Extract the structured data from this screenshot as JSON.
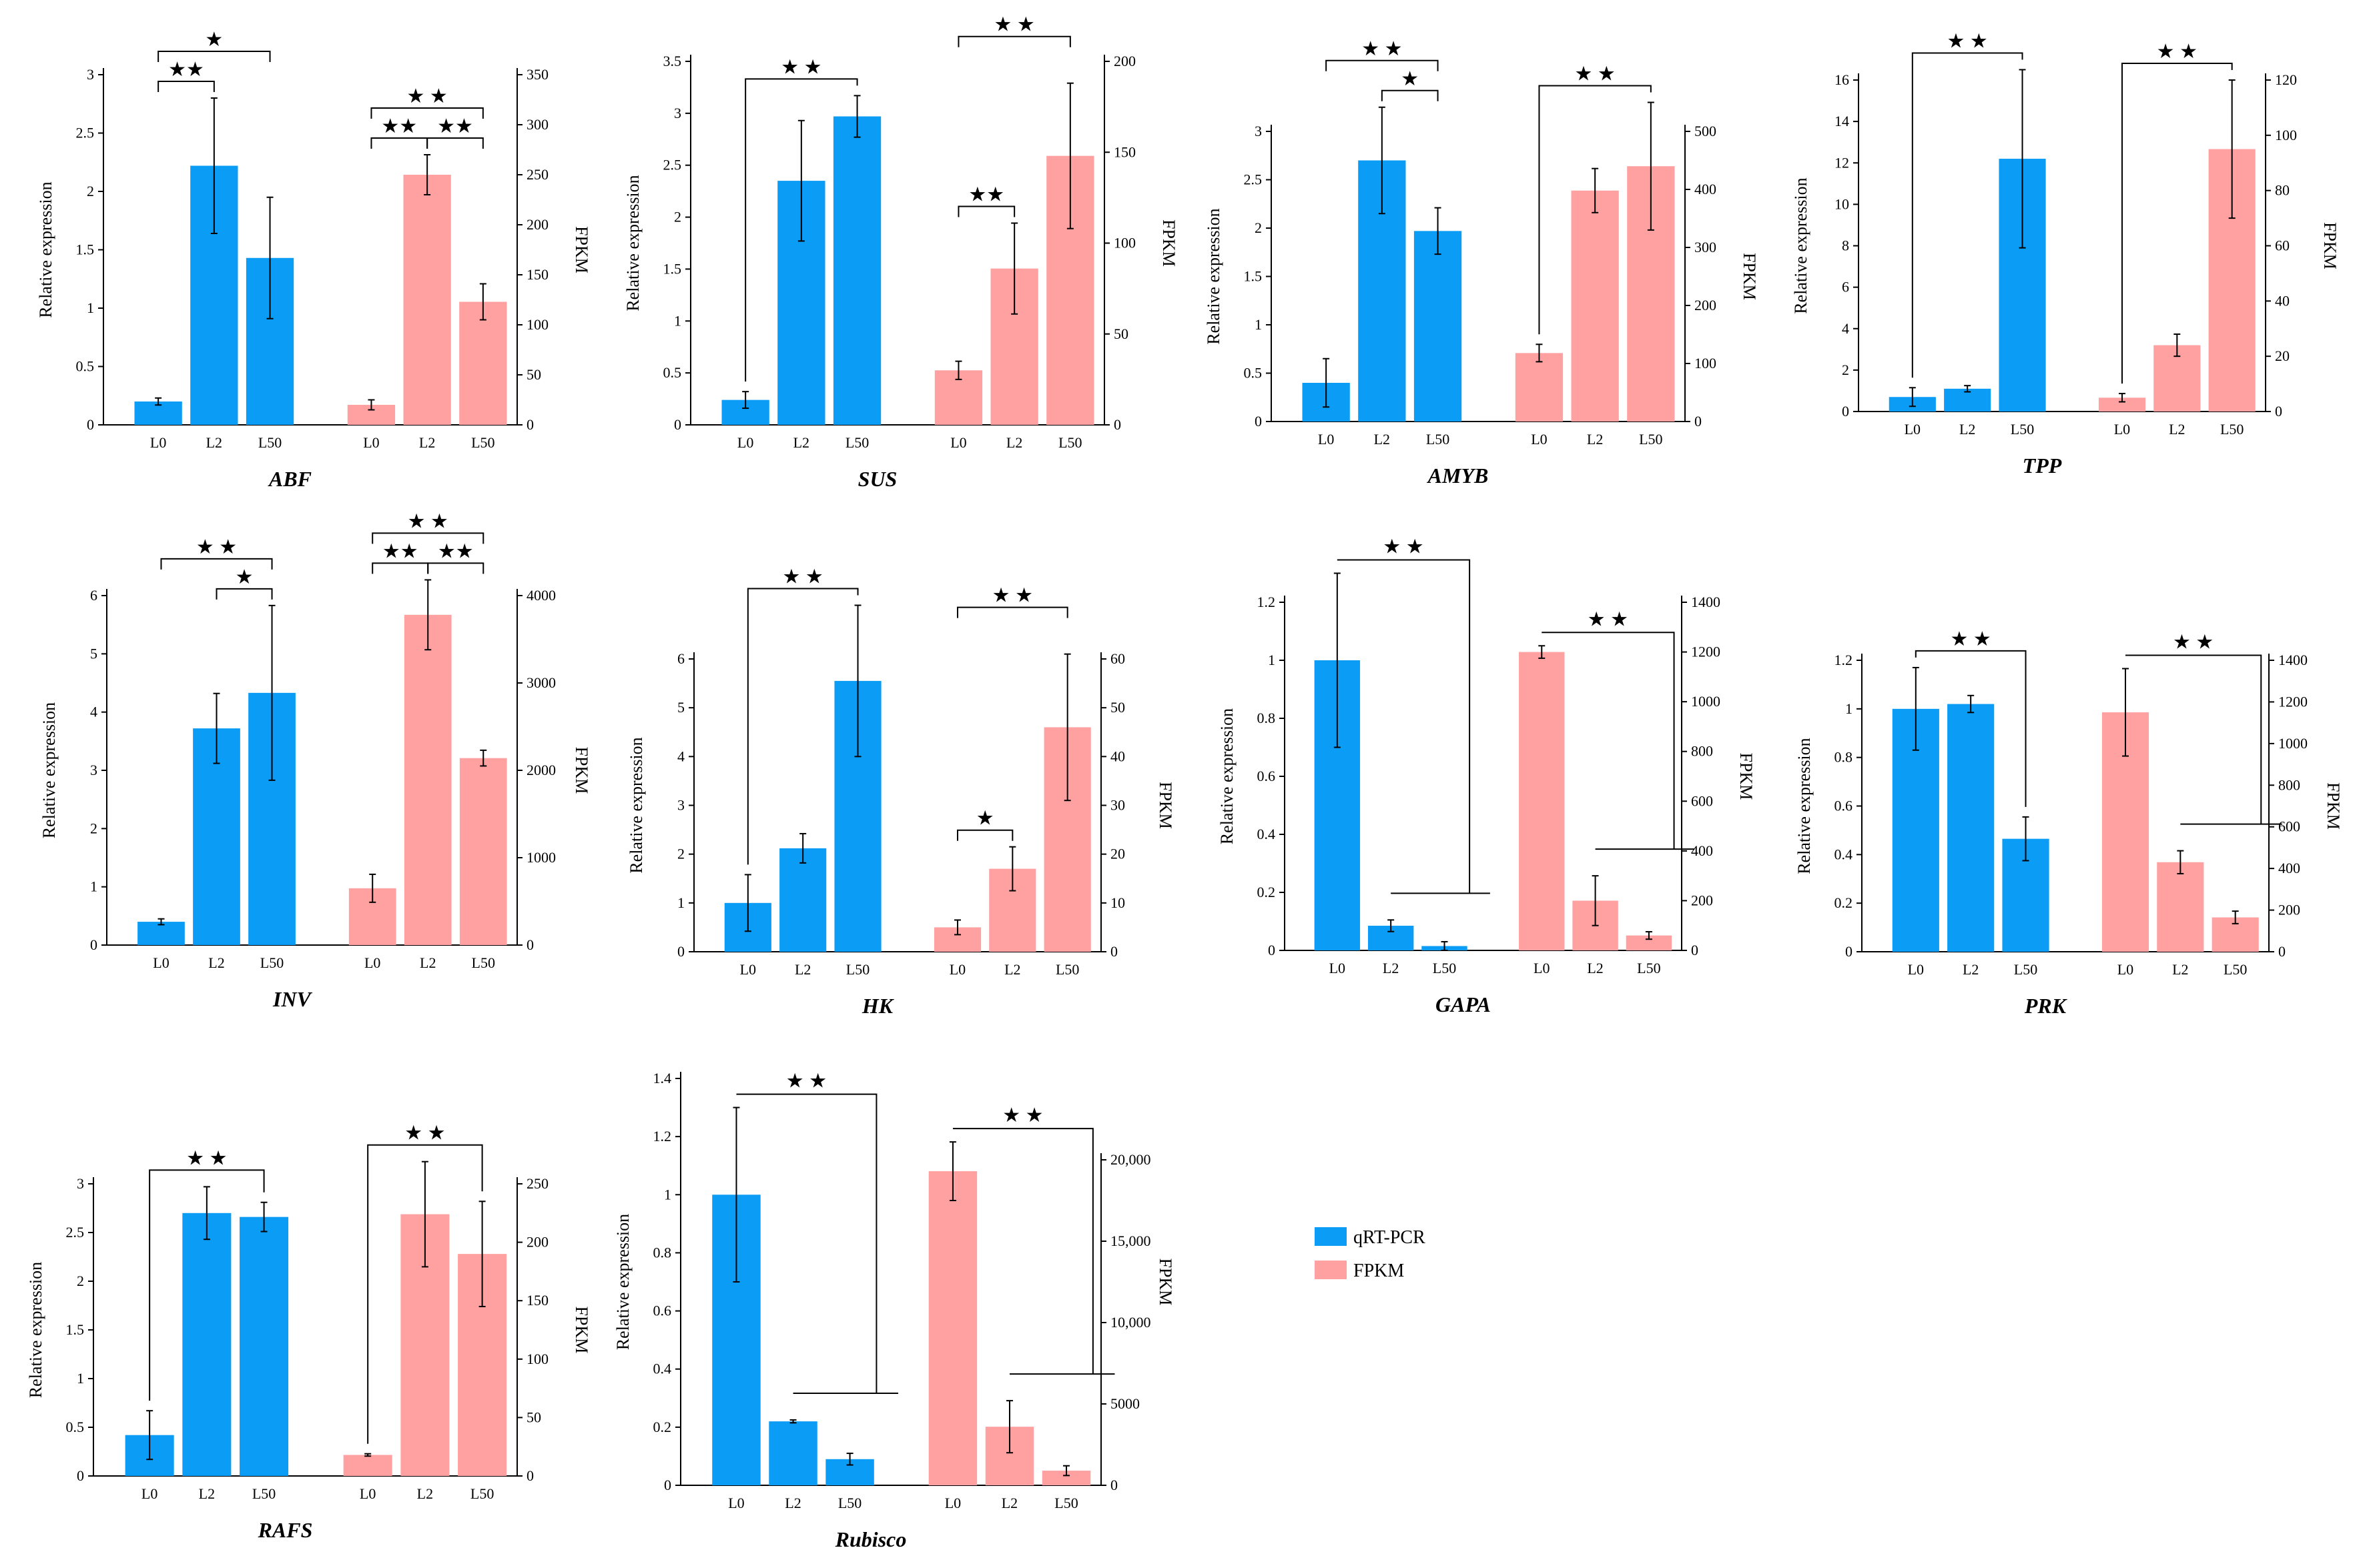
{
  "chart_data": [
    {
      "type": "bar",
      "title": "ABF",
      "categories": [
        "L0",
        "L2",
        "L50"
      ],
      "ylabel": "Relative expression",
      "y2label": "FPKM",
      "ylim": [
        0,
        3
      ],
      "yticks": [
        0,
        0.5,
        1,
        1.5,
        2,
        2.5,
        3
      ],
      "y2lim": [
        0,
        350
      ],
      "y2ticks": [
        0,
        50,
        100,
        150,
        200,
        250,
        300,
        350
      ],
      "series": [
        {
          "name": "qRT-PCR",
          "values": [
            0.2,
            2.22,
            1.43
          ],
          "errors": [
            0.03,
            0.58,
            0.52
          ]
        },
        {
          "name": "FPKM",
          "values": [
            20,
            250,
            123
          ],
          "errors": [
            5,
            20,
            18
          ]
        }
      ],
      "annotations": [
        {
          "label": "★★",
          "group": "left",
          "from": 0,
          "to": 1,
          "level": 0
        },
        {
          "label": "★",
          "group": "left",
          "from": 0,
          "to": 2,
          "level": 1
        },
        {
          "label": "★★",
          "group": "right",
          "from": 0,
          "to": 1,
          "level": 0
        },
        {
          "label": "★★",
          "group": "right",
          "from": 1,
          "to": 2,
          "level": 0
        },
        {
          "label": "★ ★",
          "group": "right",
          "from": 0,
          "to": 2,
          "level": 1
        }
      ]
    },
    {
      "type": "bar",
      "title": "SUS",
      "categories": [
        "L0",
        "L2",
        "L50"
      ],
      "ylabel": "Relative expression",
      "y2label": "FPKM",
      "ylim": [
        0,
        3.5
      ],
      "yticks": [
        0,
        0.5,
        1,
        1.5,
        2,
        2.5,
        3,
        3.5
      ],
      "y2lim": [
        0,
        200
      ],
      "y2ticks": [
        0,
        50,
        100,
        150,
        200
      ],
      "series": [
        {
          "name": "qRT-PCR",
          "values": [
            0.24,
            2.35,
            2.97
          ],
          "errors": [
            0.08,
            0.58,
            0.2
          ]
        },
        {
          "name": "FPKM",
          "values": [
            30,
            86,
            148
          ],
          "errors": [
            5,
            25,
            40
          ]
        }
      ],
      "annotations": [
        {
          "label": "★ ★",
          "group": "left",
          "from": 0,
          "to": 2,
          "level": 0,
          "type": "fork"
        },
        {
          "label": "★★",
          "group": "right",
          "from": 0,
          "to": 1,
          "level": 0
        },
        {
          "label": "★ ★",
          "group": "right",
          "from": 0,
          "to": 2,
          "level": 1
        }
      ]
    },
    {
      "type": "bar",
      "title": "AMYB",
      "categories": [
        "L0",
        "L2",
        "L50"
      ],
      "ylabel": "Relative expression",
      "y2label": "FPKM",
      "ylim": [
        0,
        3
      ],
      "yticks": [
        0,
        0.5,
        1,
        1.5,
        2,
        2.5,
        3
      ],
      "y2lim": [
        0,
        500
      ],
      "y2ticks": [
        0,
        100,
        200,
        300,
        400,
        500
      ],
      "series": [
        {
          "name": "qRT-PCR",
          "values": [
            0.4,
            2.7,
            1.97
          ],
          "errors": [
            0.25,
            0.55,
            0.24
          ]
        },
        {
          "name": "FPKM",
          "values": [
            118,
            398,
            440
          ],
          "errors": [
            15,
            38,
            110
          ]
        }
      ],
      "annotations": [
        {
          "label": "★",
          "group": "left",
          "from": 1,
          "to": 2,
          "level": 0
        },
        {
          "label": "★ ★",
          "group": "left",
          "from": 0,
          "to": 2,
          "level": 1
        },
        {
          "label": "★ ★",
          "group": "right",
          "from": 0,
          "to": 2,
          "level": 0,
          "type": "fork"
        }
      ]
    },
    {
      "type": "bar",
      "title": "TPP",
      "categories": [
        "L0",
        "L2",
        "L50"
      ],
      "ylabel": "Relative expression",
      "y2label": "FPKM",
      "ylim": [
        0,
        16
      ],
      "yticks": [
        0,
        2,
        4,
        6,
        8,
        10,
        12,
        14,
        16
      ],
      "y2lim": [
        0,
        120
      ],
      "y2ticks": [
        0,
        20,
        40,
        60,
        80,
        100,
        120
      ],
      "series": [
        {
          "name": "qRT-PCR",
          "values": [
            0.7,
            1.1,
            12.2
          ],
          "errors": [
            0.45,
            0.15,
            4.3
          ]
        },
        {
          "name": "FPKM",
          "values": [
            5,
            24,
            95
          ],
          "errors": [
            1.5,
            4,
            25
          ]
        }
      ],
      "annotations": [
        {
          "label": "★ ★",
          "group": "left",
          "from": 0,
          "to": 2,
          "level": 0,
          "type": "fork"
        },
        {
          "label": "★ ★",
          "group": "right",
          "from": 0,
          "to": 2,
          "level": 0,
          "type": "fork"
        }
      ]
    },
    {
      "type": "bar",
      "title": "INV",
      "categories": [
        "L0",
        "L2",
        "L50"
      ],
      "ylabel": "Relative expression",
      "y2label": "FPKM",
      "ylim": [
        0,
        6
      ],
      "yticks": [
        0,
        1,
        2,
        3,
        4,
        5,
        6
      ],
      "y2lim": [
        0,
        4000
      ],
      "y2ticks": [
        0,
        1000,
        2000,
        3000,
        4000
      ],
      "series": [
        {
          "name": "qRT-PCR",
          "values": [
            0.4,
            3.72,
            4.33
          ],
          "errors": [
            0.05,
            0.6,
            1.5
          ]
        },
        {
          "name": "FPKM",
          "values": [
            650,
            3780,
            2140
          ],
          "errors": [
            160,
            400,
            90
          ]
        }
      ],
      "annotations": [
        {
          "label": "★",
          "group": "left",
          "from": 1,
          "to": 2,
          "level": 0
        },
        {
          "label": "★ ★",
          "group": "left",
          "from": 0,
          "to": 2,
          "level": 1
        },
        {
          "label": "★★",
          "group": "right",
          "from": 0,
          "to": 1,
          "level": 0
        },
        {
          "label": "★★",
          "group": "right",
          "from": 1,
          "to": 2,
          "level": 0
        },
        {
          "label": "★ ★",
          "group": "right",
          "from": 0,
          "to": 2,
          "level": 1
        }
      ]
    },
    {
      "type": "bar",
      "title": "HK",
      "categories": [
        "L0",
        "L2",
        "L50"
      ],
      "ylabel": "Relative expression",
      "y2label": "FPKM",
      "ylim": [
        0,
        6
      ],
      "yticks": [
        0,
        1,
        2,
        3,
        4,
        5,
        6
      ],
      "y2lim": [
        0,
        60
      ],
      "y2ticks": [
        0,
        10,
        20,
        30,
        40,
        50,
        60
      ],
      "series": [
        {
          "name": "qRT-PCR",
          "values": [
            1.0,
            2.12,
            5.55
          ],
          "errors": [
            0.58,
            0.3,
            1.55
          ]
        },
        {
          "name": "FPKM",
          "values": [
            5,
            17,
            46
          ],
          "errors": [
            1.5,
            4.5,
            15
          ]
        }
      ],
      "annotations": [
        {
          "label": "★ ★",
          "group": "left",
          "from": 0,
          "to": 2,
          "level": 0,
          "type": "fork"
        },
        {
          "label": "★",
          "group": "right",
          "from": 0,
          "to": 1,
          "level": 0
        },
        {
          "label": "★ ★",
          "group": "right",
          "from": 0,
          "to": 2,
          "level": 1
        }
      ]
    },
    {
      "type": "bar",
      "title": "GAPA",
      "categories": [
        "L0",
        "L2",
        "L50"
      ],
      "ylabel": "Relative expression",
      "y2label": "FPKM",
      "ylim": [
        0,
        1.2
      ],
      "yticks": [
        0,
        0.2,
        0.4,
        0.6,
        0.8,
        1,
        1.2
      ],
      "y2lim": [
        0,
        1400
      ],
      "y2ticks": [
        0,
        200,
        400,
        600,
        800,
        1000,
        1200,
        1400
      ],
      "series": [
        {
          "name": "qRT-PCR",
          "values": [
            1.0,
            0.085,
            0.015
          ],
          "errors": [
            0.3,
            0.02,
            0.015
          ]
        },
        {
          "name": "FPKM",
          "values": [
            1200,
            200,
            60
          ],
          "errors": [
            25,
            100,
            15
          ]
        }
      ],
      "annotations": [
        {
          "label": "★ ★",
          "group": "left",
          "from": 0,
          "to": 2,
          "level": 0,
          "type": "rfork"
        },
        {
          "label": "★ ★",
          "group": "right",
          "from": 0,
          "to": 2,
          "level": 0,
          "type": "rfork"
        }
      ]
    },
    {
      "type": "bar",
      "title": "PRK",
      "categories": [
        "L0",
        "L2",
        "L50"
      ],
      "ylabel": "Relative expression",
      "y2label": "FPKM",
      "ylim": [
        0,
        1.2
      ],
      "yticks": [
        0,
        0.2,
        0.4,
        0.6,
        0.8,
        1,
        1.2
      ],
      "y2lim": [
        0,
        1400
      ],
      "y2ticks": [
        0,
        200,
        400,
        600,
        800,
        1000,
        1200,
        1400
      ],
      "series": [
        {
          "name": "qRT-PCR",
          "values": [
            1.0,
            1.02,
            0.465
          ],
          "errors": [
            0.17,
            0.035,
            0.09
          ]
        },
        {
          "name": "FPKM",
          "values": [
            1150,
            430,
            165
          ],
          "errors": [
            210,
            55,
            30
          ]
        }
      ],
      "annotations": [
        {
          "label": "★ ★",
          "group": "left",
          "from": 0,
          "to": 2,
          "level": 0,
          "type": "fork"
        },
        {
          "label": "★ ★",
          "group": "right",
          "from": 0,
          "to": 2,
          "level": 0,
          "type": "rfork"
        }
      ]
    },
    {
      "type": "bar",
      "title": "RAFS",
      "categories": [
        "L0",
        "L2",
        "L50"
      ],
      "ylabel": "Relative expression",
      "y2label": "FPKM",
      "ylim": [
        0,
        3
      ],
      "yticks": [
        0,
        0.5,
        1,
        1.5,
        2,
        2.5,
        3
      ],
      "y2lim": [
        0,
        250
      ],
      "y2ticks": [
        0,
        50,
        100,
        150,
        200,
        250
      ],
      "series": [
        {
          "name": "qRT-PCR",
          "values": [
            0.42,
            2.7,
            2.66
          ],
          "errors": [
            0.25,
            0.27,
            0.15
          ]
        },
        {
          "name": "FPKM",
          "values": [
            18,
            224,
            190
          ],
          "errors": [
            1,
            45,
            45
          ]
        }
      ],
      "annotations": [
        {
          "label": "★ ★",
          "group": "left",
          "from": 0,
          "to": 2,
          "level": 0,
          "type": "fork"
        },
        {
          "label": "★ ★",
          "group": "right",
          "from": 0,
          "to": 2,
          "level": 0,
          "type": "fork"
        }
      ]
    },
    {
      "type": "bar",
      "title": "Rubisco",
      "categories": [
        "L0",
        "L2",
        "L50"
      ],
      "ylabel": "Relative expression",
      "y2label": "FPKM",
      "ylim": [
        0,
        1.4
      ],
      "yticks": [
        0,
        0.2,
        0.4,
        0.6,
        0.8,
        1,
        1.2,
        1.4
      ],
      "y2lim": [
        0,
        25000
      ],
      "y2ticks": [
        0,
        5000,
        10000,
        15000,
        20000
      ],
      "y2ticklabels": [
        "0",
        "5000",
        "10,000",
        "15,000",
        "20,000"
      ],
      "series": [
        {
          "name": "qRT-PCR",
          "values": [
            1.0,
            0.22,
            0.09
          ],
          "errors": [
            0.3,
            0.005,
            0.02
          ]
        },
        {
          "name": "FPKM",
          "values": [
            19300,
            3600,
            900
          ],
          "errors": [
            1800,
            1600,
            300
          ]
        }
      ],
      "annotations": [
        {
          "label": "★ ★",
          "group": "left",
          "from": 0,
          "to": 2,
          "level": 0,
          "type": "rfork"
        },
        {
          "label": "★ ★",
          "group": "right",
          "from": 0,
          "to": 2,
          "level": 0,
          "type": "rfork"
        }
      ]
    }
  ],
  "legend": [
    {
      "label": "qRT-PCR",
      "color": "#0b9cf5"
    },
    {
      "label": "FPKM",
      "color": "#ffa1a1"
    }
  ],
  "colors": {
    "qpcr": "#0b9cf5",
    "fpkm": "#ffa1a1",
    "axis": "#000000"
  }
}
